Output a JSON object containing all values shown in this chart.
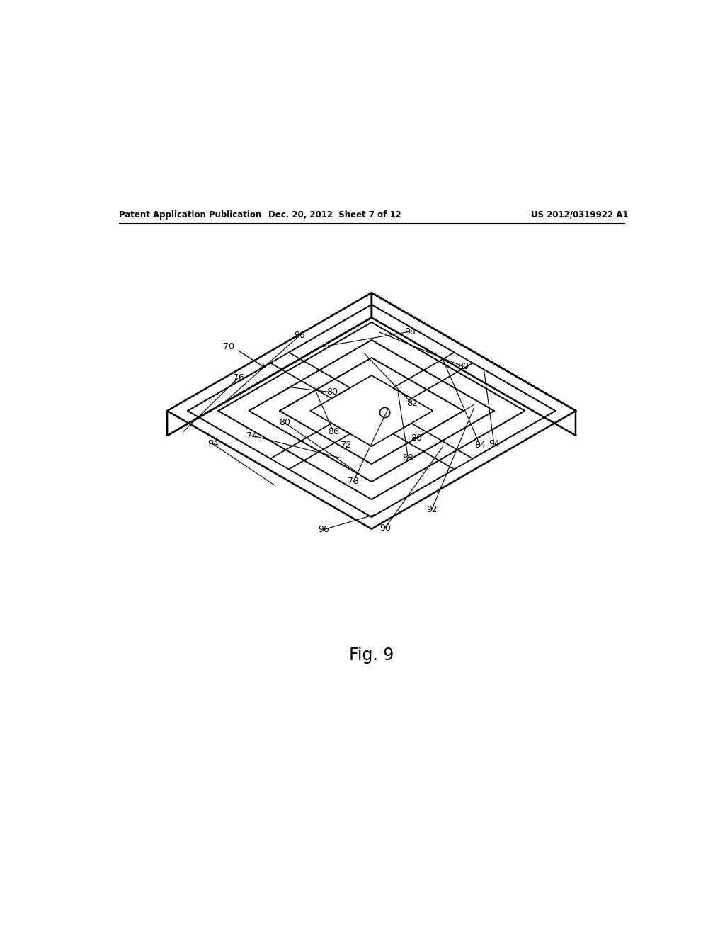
{
  "title": "",
  "fig_label": "Fig. 9",
  "header_left": "Patent Application Publication",
  "header_center": "Dec. 20, 2012  Sheet 7 of 12",
  "header_right": "US 2012/0319922 A1",
  "background_color": "#ffffff",
  "line_color": "#000000",
  "line_width": 1.2
}
